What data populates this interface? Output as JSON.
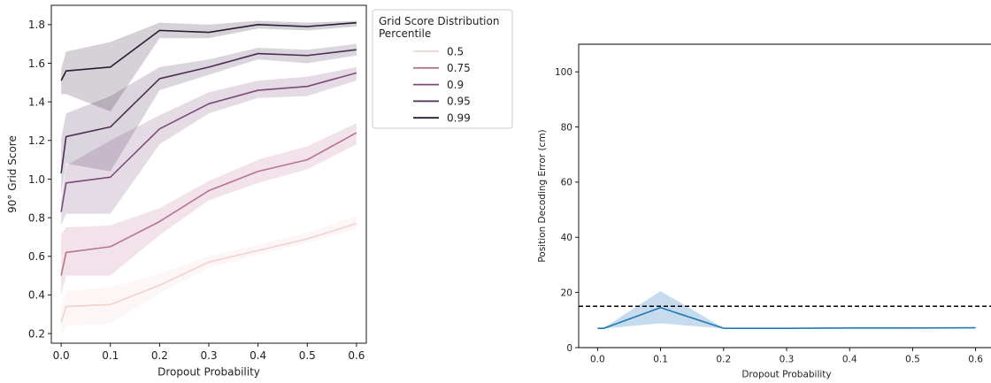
{
  "chart_data": [
    {
      "type": "line",
      "xlabel": "Dropout Probability",
      "ylabel": "90° Grid Score",
      "xlim": [
        -0.02,
        0.62
      ],
      "ylim": [
        0.15,
        1.9
      ],
      "xticks": [
        0.0,
        0.1,
        0.2,
        0.3,
        0.4,
        0.5,
        0.6
      ],
      "xtick_labels": [
        "0.0",
        "0.1",
        "0.2",
        "0.3",
        "0.4",
        "0.5",
        "0.6"
      ],
      "yticks": [
        0.2,
        0.4,
        0.6,
        0.8,
        1.0,
        1.2,
        1.4,
        1.6,
        1.8
      ],
      "ytick_labels": [
        "0.2",
        "0.4",
        "0.6",
        "0.8",
        "1.0",
        "1.2",
        "1.4",
        "1.6",
        "1.8"
      ],
      "grid": false,
      "legend": {
        "title_lines": [
          "Grid Score Distribution",
          "Percentile"
        ],
        "placement": "outside-top-right"
      },
      "x": [
        0.0,
        0.01,
        0.1,
        0.2,
        0.3,
        0.4,
        0.5,
        0.6
      ],
      "series": [
        {
          "name": "0.5",
          "color": "#f0d2d0",
          "values": [
            0.26,
            0.34,
            0.35,
            0.45,
            0.57,
            0.63,
            0.69,
            0.77
          ],
          "lower": [
            0.19,
            0.24,
            0.25,
            0.41,
            0.54,
            0.61,
            0.67,
            0.74
          ],
          "upper": [
            0.33,
            0.42,
            0.44,
            0.51,
            0.6,
            0.66,
            0.72,
            0.81
          ]
        },
        {
          "name": "0.75",
          "color": "#b8738f",
          "values": [
            0.5,
            0.62,
            0.65,
            0.78,
            0.94,
            1.04,
            1.1,
            1.24
          ],
          "lower": [
            0.4,
            0.5,
            0.5,
            0.71,
            0.89,
            0.98,
            1.05,
            1.18
          ],
          "upper": [
            0.71,
            0.75,
            0.76,
            0.85,
            0.99,
            1.1,
            1.17,
            1.29
          ]
        },
        {
          "name": "0.9",
          "color": "#7e4a7c",
          "values": [
            0.83,
            0.98,
            1.01,
            1.26,
            1.39,
            1.46,
            1.48,
            1.55
          ],
          "lower": [
            0.76,
            0.82,
            0.82,
            1.18,
            1.34,
            1.42,
            1.43,
            1.51
          ],
          "upper": [
            0.89,
            1.07,
            1.2,
            1.33,
            1.45,
            1.51,
            1.53,
            1.58
          ]
        },
        {
          "name": "0.95",
          "color": "#4d2d53",
          "values": [
            1.03,
            1.22,
            1.27,
            1.52,
            1.58,
            1.65,
            1.64,
            1.67
          ],
          "lower": [
            0.92,
            1.08,
            1.04,
            1.46,
            1.54,
            1.62,
            1.6,
            1.64
          ],
          "upper": [
            1.21,
            1.34,
            1.43,
            1.58,
            1.62,
            1.68,
            1.67,
            1.7
          ]
        },
        {
          "name": "0.99",
          "color": "#2b1b35",
          "values": [
            1.51,
            1.56,
            1.58,
            1.77,
            1.76,
            1.8,
            1.79,
            1.81
          ],
          "lower": [
            1.44,
            1.44,
            1.35,
            1.73,
            1.73,
            1.78,
            1.77,
            1.79
          ],
          "upper": [
            1.57,
            1.66,
            1.71,
            1.81,
            1.8,
            1.82,
            1.81,
            1.82
          ]
        }
      ]
    },
    {
      "type": "line",
      "xlabel": "Dropout Probability",
      "ylabel": "Position Decoding Error (cm)",
      "xlim": [
        -0.03,
        0.63
      ],
      "ylim": [
        0,
        110
      ],
      "xticks": [
        0.0,
        0.1,
        0.2,
        0.3,
        0.4,
        0.5,
        0.6
      ],
      "xtick_labels": [
        "0.0",
        "0.1",
        "0.2",
        "0.3",
        "0.4",
        "0.5",
        "0.6"
      ],
      "yticks": [
        0,
        20,
        40,
        60,
        80,
        100
      ],
      "ytick_labels": [
        "0",
        "20",
        "40",
        "60",
        "80",
        "100"
      ],
      "grid": false,
      "x": [
        0.0,
        0.01,
        0.1,
        0.2,
        0.3,
        0.4,
        0.5,
        0.6
      ],
      "series": [
        {
          "name": "",
          "color": "#1f77b4",
          "band_color": "#c6dbee",
          "values": [
            7.0,
            7.0,
            14.5,
            7.0,
            7.0,
            7.1,
            7.1,
            7.2
          ],
          "lower": [
            6.9,
            6.9,
            8.8,
            6.9,
            6.9,
            7.0,
            7.0,
            7.1
          ],
          "upper": [
            7.2,
            7.2,
            20.5,
            7.1,
            7.1,
            7.2,
            7.2,
            7.3
          ]
        }
      ],
      "reference_line": {
        "y": 15,
        "style": "dashed",
        "color": "#000000"
      }
    }
  ]
}
